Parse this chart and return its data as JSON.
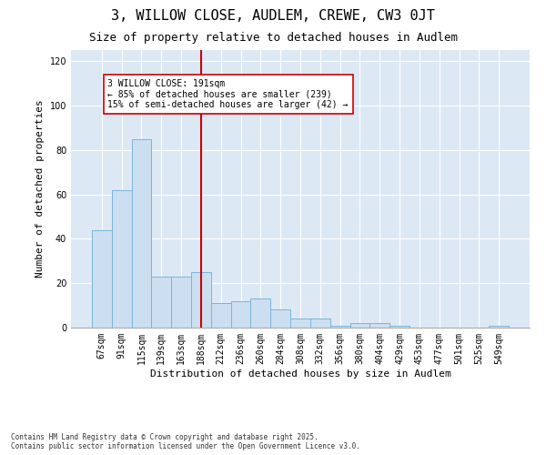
{
  "title": "3, WILLOW CLOSE, AUDLEM, CREWE, CW3 0JT",
  "subtitle": "Size of property relative to detached houses in Audlem",
  "xlabel": "Distribution of detached houses by size in Audlem",
  "ylabel": "Number of detached properties",
  "categories": [
    "67sqm",
    "91sqm",
    "115sqm",
    "139sqm",
    "163sqm",
    "188sqm",
    "212sqm",
    "236sqm",
    "260sqm",
    "284sqm",
    "308sqm",
    "332sqm",
    "356sqm",
    "380sqm",
    "404sqm",
    "429sqm",
    "453sqm",
    "477sqm",
    "501sqm",
    "525sqm",
    "549sqm"
  ],
  "values": [
    44,
    62,
    85,
    23,
    23,
    25,
    11,
    12,
    13,
    8,
    4,
    4,
    1,
    2,
    2,
    1,
    0,
    0,
    0,
    0,
    1
  ],
  "bar_color": "#ccdff0",
  "bar_edge_color": "#7ab5d8",
  "vline_x_index": 5,
  "vline_color": "#cc0000",
  "annotation_text": "3 WILLOW CLOSE: 191sqm\n← 85% of detached houses are smaller (239)\n15% of semi-detached houses are larger (42) →",
  "annotation_box_color": "#ffffff",
  "annotation_box_edge": "#cc0000",
  "ylim": [
    0,
    125
  ],
  "yticks": [
    0,
    20,
    40,
    60,
    80,
    100,
    120
  ],
  "bg_color": "#dde8f5",
  "fig_bg_color": "#ffffff",
  "footer": "Contains HM Land Registry data © Crown copyright and database right 2025.\nContains public sector information licensed under the Open Government Licence v3.0.",
  "title_fontsize": 11,
  "subtitle_fontsize": 9,
  "tick_fontsize": 7,
  "ylabel_fontsize": 8,
  "xlabel_fontsize": 8
}
